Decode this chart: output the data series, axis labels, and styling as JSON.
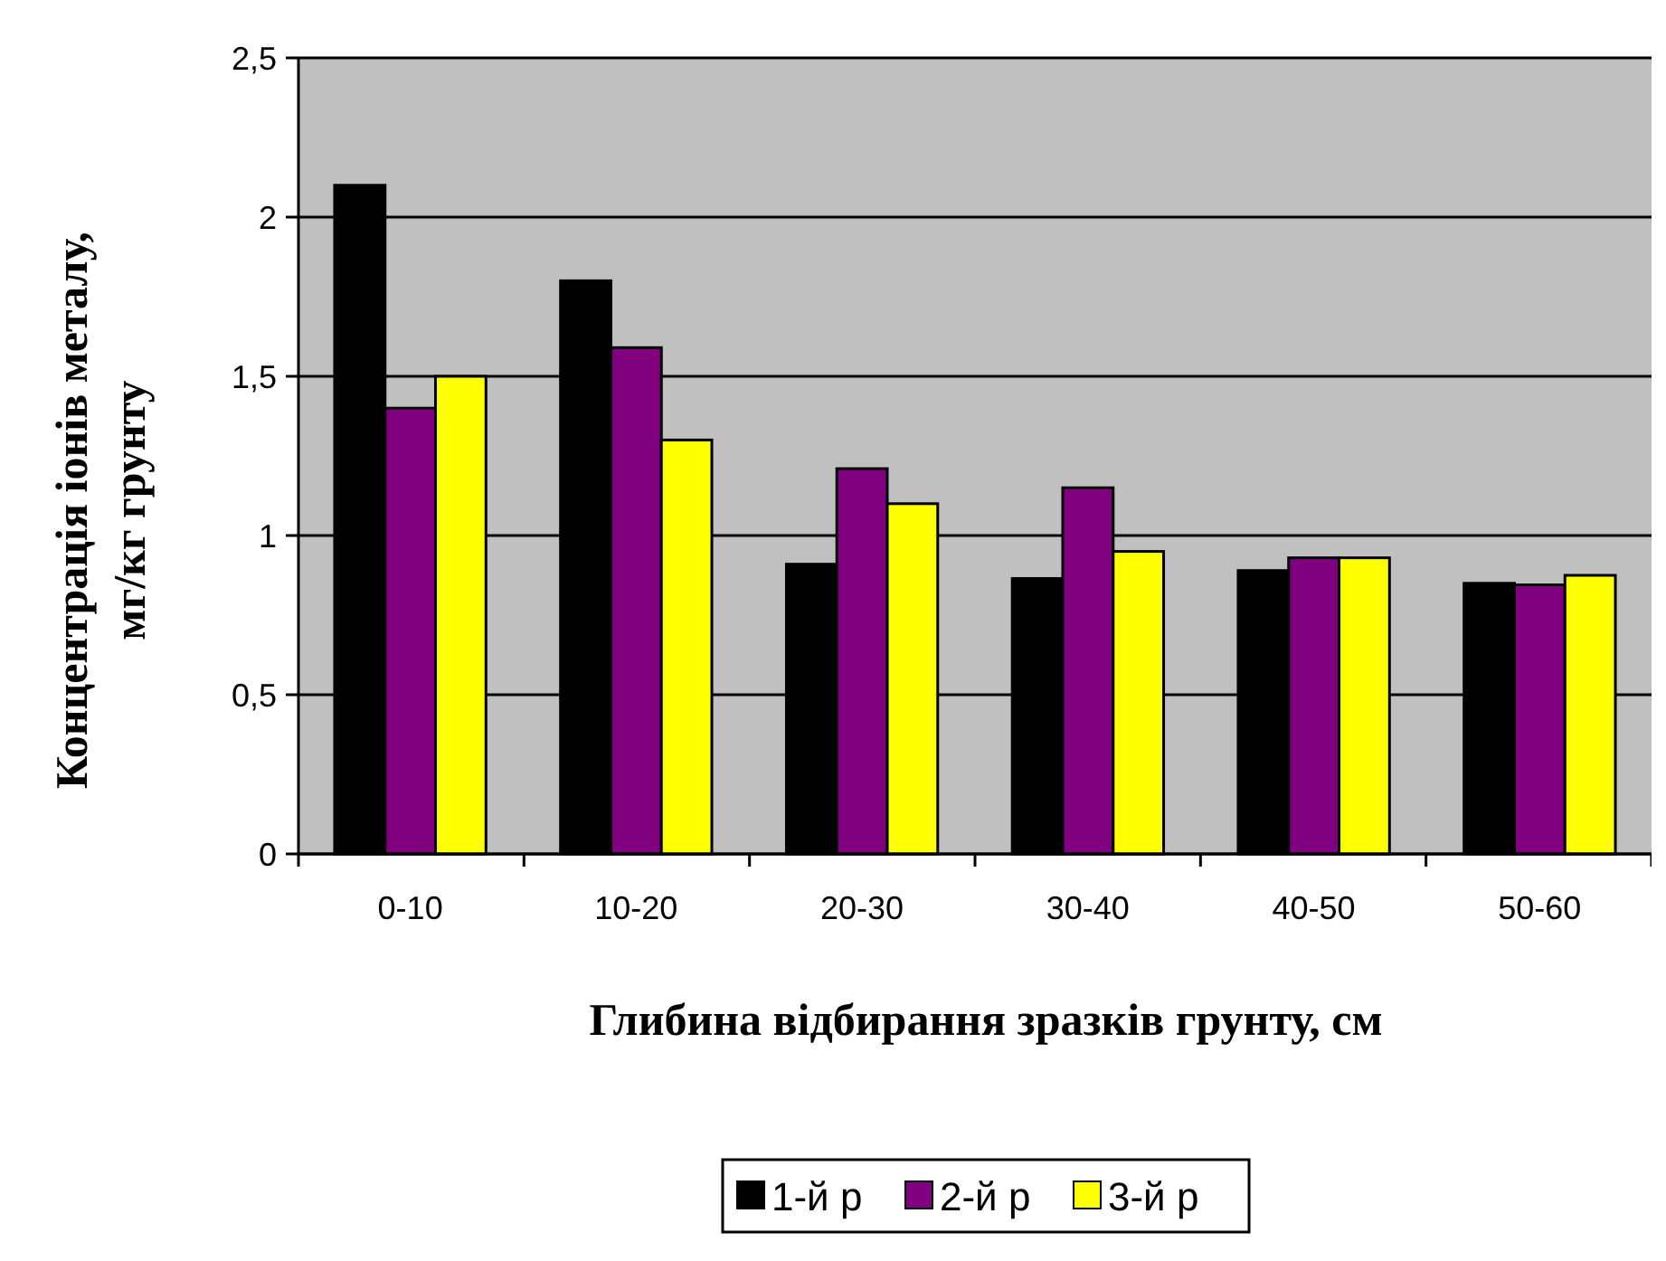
{
  "chart_data": {
    "type": "bar",
    "xlabel": "Глибина відбирання зразків грунту, см",
    "ylabel": "Концентрація іонів металу, мг/кг грунту",
    "categories": [
      "0-10",
      "10-20",
      "20-30",
      "30-40",
      "40-50",
      "50-60"
    ],
    "series": [
      {
        "name": "1-й р",
        "color": "#000000",
        "values": [
          2.1,
          1.8,
          0.91,
          0.865,
          0.89,
          0.85
        ]
      },
      {
        "name": "2-й р",
        "color": "#800080",
        "values": [
          1.4,
          1.59,
          1.21,
          1.15,
          0.93,
          0.845
        ]
      },
      {
        "name": "3-й р",
        "color": "#ffff00",
        "values": [
          1.5,
          1.3,
          1.1,
          0.95,
          0.93,
          0.875
        ]
      }
    ],
    "ylim": [
      0,
      2.5
    ],
    "yticks": [
      0,
      {
        "value": 0.5,
        "label": "0,5"
      },
      1,
      {
        "value": 1.5,
        "label": "1,5"
      },
      2,
      {
        "value": 2.5,
        "label": "2,5"
      }
    ],
    "grid": "y",
    "legend": "bottom"
  }
}
